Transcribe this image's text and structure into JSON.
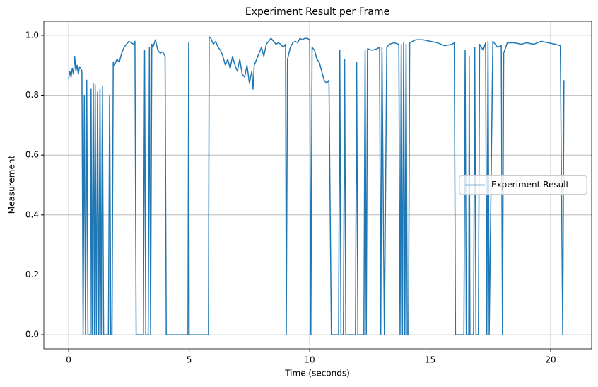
{
  "chart_data": {
    "type": "line",
    "title": "Experiment Result per Frame",
    "x_label": "Time (seconds)",
    "y_label": "Measurement",
    "x": [
      0.0,
      0.05,
      0.1,
      0.15,
      0.2,
      0.25,
      0.3,
      0.35,
      0.4,
      0.45,
      0.5,
      0.55,
      0.6,
      0.65,
      0.7,
      0.75,
      0.8,
      0.9,
      0.93,
      0.97,
      1.02,
      1.07,
      1.1,
      1.15,
      1.2,
      1.25,
      1.3,
      1.35,
      1.4,
      1.45,
      1.65,
      1.7,
      1.75,
      1.8,
      1.85,
      1.9,
      2.0,
      2.1,
      2.2,
      2.3,
      2.4,
      2.5,
      2.6,
      2.7,
      2.75,
      2.8,
      3.1,
      3.15,
      3.2,
      3.3,
      3.35,
      3.4,
      3.45,
      3.5,
      3.6,
      3.7,
      3.8,
      3.9,
      4.0,
      4.05,
      4.95,
      4.98,
      5.0,
      5.8,
      5.83,
      5.9,
      6.0,
      6.1,
      6.2,
      6.3,
      6.4,
      6.5,
      6.6,
      6.7,
      6.8,
      6.9,
      7.0,
      7.1,
      7.2,
      7.3,
      7.4,
      7.5,
      7.6,
      7.65,
      7.7,
      7.8,
      7.9,
      8.0,
      8.1,
      8.2,
      8.3,
      8.4,
      8.5,
      8.6,
      8.7,
      8.8,
      8.9,
      9.0,
      9.03,
      9.08,
      9.2,
      9.3,
      9.4,
      9.5,
      9.6,
      9.7,
      9.8,
      9.9,
      10.0,
      10.05,
      10.1,
      10.2,
      10.3,
      10.4,
      10.5,
      10.6,
      10.7,
      10.8,
      10.9,
      11.2,
      11.25,
      11.3,
      11.4,
      11.45,
      11.5,
      11.9,
      11.95,
      12.0,
      12.25,
      12.3,
      12.35,
      12.4,
      12.6,
      12.8,
      12.9,
      12.95,
      13.0,
      13.1,
      13.2,
      13.3,
      13.5,
      13.7,
      13.75,
      13.8,
      13.85,
      13.9,
      13.95,
      14.0,
      14.05,
      14.1,
      14.15,
      14.4,
      14.7,
      15.0,
      15.3,
      15.6,
      15.9,
      16.0,
      16.05,
      16.4,
      16.45,
      16.5,
      16.6,
      16.62,
      16.65,
      16.8,
      16.85,
      16.9,
      17.0,
      17.05,
      17.2,
      17.3,
      17.35,
      17.4,
      17.45,
      17.6,
      17.7,
      17.8,
      17.95,
      18.0,
      18.05,
      18.2,
      18.5,
      18.8,
      19.0,
      19.3,
      19.6,
      19.9,
      20.2,
      20.4,
      20.5,
      20.55
    ],
    "series": [
      {
        "name": "Experiment Result",
        "color": "#1f77b4",
        "values": [
          0.855,
          0.88,
          0.86,
          0.89,
          0.87,
          0.93,
          0.88,
          0.9,
          0.87,
          0.895,
          0.89,
          0.88,
          0.0,
          0.8,
          0.0,
          0.85,
          0.0,
          0.0,
          0.82,
          0.0,
          0.84,
          0.0,
          0.835,
          0.0,
          0.81,
          0.0,
          0.82,
          0.0,
          0.83,
          0.0,
          0.0,
          0.8,
          0.0,
          0.0,
          0.91,
          0.9,
          0.92,
          0.91,
          0.94,
          0.96,
          0.97,
          0.98,
          0.975,
          0.97,
          0.98,
          0.0,
          0.0,
          0.95,
          0.0,
          0.0,
          0.96,
          0.0,
          0.97,
          0.96,
          0.985,
          0.95,
          0.94,
          0.945,
          0.93,
          0.0,
          0.0,
          0.975,
          0.0,
          0.0,
          0.995,
          0.99,
          0.97,
          0.98,
          0.96,
          0.95,
          0.93,
          0.9,
          0.92,
          0.89,
          0.93,
          0.9,
          0.88,
          0.92,
          0.87,
          0.86,
          0.9,
          0.84,
          0.88,
          0.82,
          0.9,
          0.92,
          0.94,
          0.96,
          0.93,
          0.97,
          0.98,
          0.99,
          0.98,
          0.97,
          0.975,
          0.97,
          0.96,
          0.97,
          0.0,
          0.92,
          0.96,
          0.975,
          0.98,
          0.975,
          0.99,
          0.985,
          0.99,
          0.99,
          0.985,
          0.0,
          0.96,
          0.95,
          0.92,
          0.91,
          0.88,
          0.85,
          0.84,
          0.85,
          0.0,
          0.0,
          0.95,
          0.0,
          0.0,
          0.92,
          0.0,
          0.0,
          0.91,
          0.0,
          0.0,
          0.95,
          0.0,
          0.955,
          0.95,
          0.955,
          0.96,
          0.0,
          0.96,
          0.0,
          0.96,
          0.97,
          0.975,
          0.97,
          0.0,
          0.97,
          0.0,
          0.975,
          0.0,
          0.97,
          0.0,
          0.0,
          0.975,
          0.985,
          0.985,
          0.98,
          0.975,
          0.965,
          0.97,
          0.975,
          0.0,
          0.0,
          0.95,
          0.0,
          0.0,
          0.93,
          0.0,
          0.0,
          0.96,
          0.0,
          0.0,
          0.97,
          0.95,
          0.975,
          0.0,
          0.98,
          0.0,
          0.98,
          0.97,
          0.96,
          0.965,
          0.0,
          0.94,
          0.975,
          0.975,
          0.97,
          0.975,
          0.97,
          0.98,
          0.975,
          0.97,
          0.965,
          0.0,
          0.85
        ]
      }
    ],
    "xlim": [
      -1.03,
      21.7
    ],
    "xticks": [
      0,
      5,
      10,
      15,
      20
    ],
    "ylim": [
      -0.047,
      1.047
    ],
    "yticks": [
      {
        "value": 0,
        "label": "0.0"
      },
      0.2,
      0.4,
      0.6,
      0.8,
      {
        "value": 1,
        "label": "1.0"
      }
    ],
    "grid": true,
    "legend": "center right"
  }
}
